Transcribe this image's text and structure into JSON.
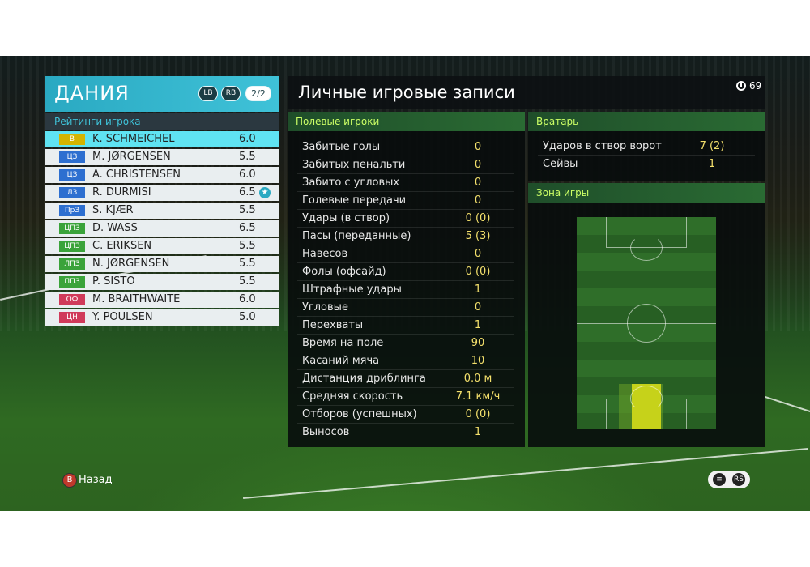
{
  "team": {
    "name": "ДАНИЯ",
    "lb": "LB",
    "rb": "RB",
    "page": "2/2"
  },
  "ratings_title": "Рейтинги игрока",
  "players": [
    {
      "pos": "В",
      "pos_color": "#d4b400",
      "name": "K. SCHMEICHEL",
      "rating": "6.0",
      "selected": true
    },
    {
      "pos": "ЦЗ",
      "pos_color": "#2d6fd0",
      "name": "M. JØRGENSEN",
      "rating": "5.5"
    },
    {
      "pos": "ЦЗ",
      "pos_color": "#2d6fd0",
      "name": "A. CHRISTENSEN",
      "rating": "6.0"
    },
    {
      "pos": "ЛЗ",
      "pos_color": "#2d6fd0",
      "name": "R. DURMISI",
      "rating": "6.5",
      "star": "★"
    },
    {
      "pos": "ПрЗ",
      "pos_color": "#2d6fd0",
      "name": "S. KJÆR",
      "rating": "5.5"
    },
    {
      "pos": "ЦПЗ",
      "pos_color": "#3aa33a",
      "name": "D. WASS",
      "rating": "6.5"
    },
    {
      "pos": "ЦПЗ",
      "pos_color": "#3aa33a",
      "name": "C. ERIKSEN",
      "rating": "5.5"
    },
    {
      "pos": "ЛПЗ",
      "pos_color": "#3aa33a",
      "name": "N. JØRGENSEN",
      "rating": "5.5"
    },
    {
      "pos": "ППЗ",
      "pos_color": "#3aa33a",
      "name": "P. SISTO",
      "rating": "5.5"
    },
    {
      "pos": "ОФ",
      "pos_color": "#d03a5a",
      "name": "M. BRAITHWAITE",
      "rating": "6.0"
    },
    {
      "pos": "ЦН",
      "pos_color": "#d03a5a",
      "name": "Y. POULSEN",
      "rating": "5.0"
    }
  ],
  "main_title": "Личные игровые записи",
  "clock": {
    "icon": "clock-icon",
    "value": "69"
  },
  "field_header": "Полевые игроки",
  "field_stats": [
    {
      "label": "Забитые голы",
      "value": "0"
    },
    {
      "label": "Забитых пенальти",
      "value": "0"
    },
    {
      "label": "Забито с угловых",
      "value": "0"
    },
    {
      "label": "Голевые передачи",
      "value": "0"
    },
    {
      "label": "Удары (в створ)",
      "value": "0 (0)"
    },
    {
      "label": "Пасы (переданные)",
      "value": "5 (3)"
    },
    {
      "label": "Навесов",
      "value": "0"
    },
    {
      "label": "Фолы (офсайд)",
      "value": "0 (0)"
    },
    {
      "label": "Штрафные удары",
      "value": "1"
    },
    {
      "label": "Угловые",
      "value": "0"
    },
    {
      "label": "Перехваты",
      "value": "1"
    },
    {
      "label": "Время на поле",
      "value": "90"
    },
    {
      "label": "Касаний мяча",
      "value": "10"
    },
    {
      "label": "Дистанция дриблинга",
      "value": "0.0 м"
    },
    {
      "label": "Средняя скорость",
      "value": "7.1 км/ч"
    },
    {
      "label": "Отборов (успешных)",
      "value": "0 (0)"
    },
    {
      "label": "Выносов",
      "value": "1"
    }
  ],
  "gk_header": "Вратарь",
  "gk_stats": [
    {
      "label": "Ударов в створ ворот",
      "value": "7 (2)"
    },
    {
      "label": "Сейвы",
      "value": "1"
    }
  ],
  "zone_header": "Зона игры",
  "footer": {
    "back_button": "B",
    "back_label": "Назад",
    "icons": [
      "chat-icon",
      "rs-icon"
    ],
    "rs_label": "R̂S"
  }
}
